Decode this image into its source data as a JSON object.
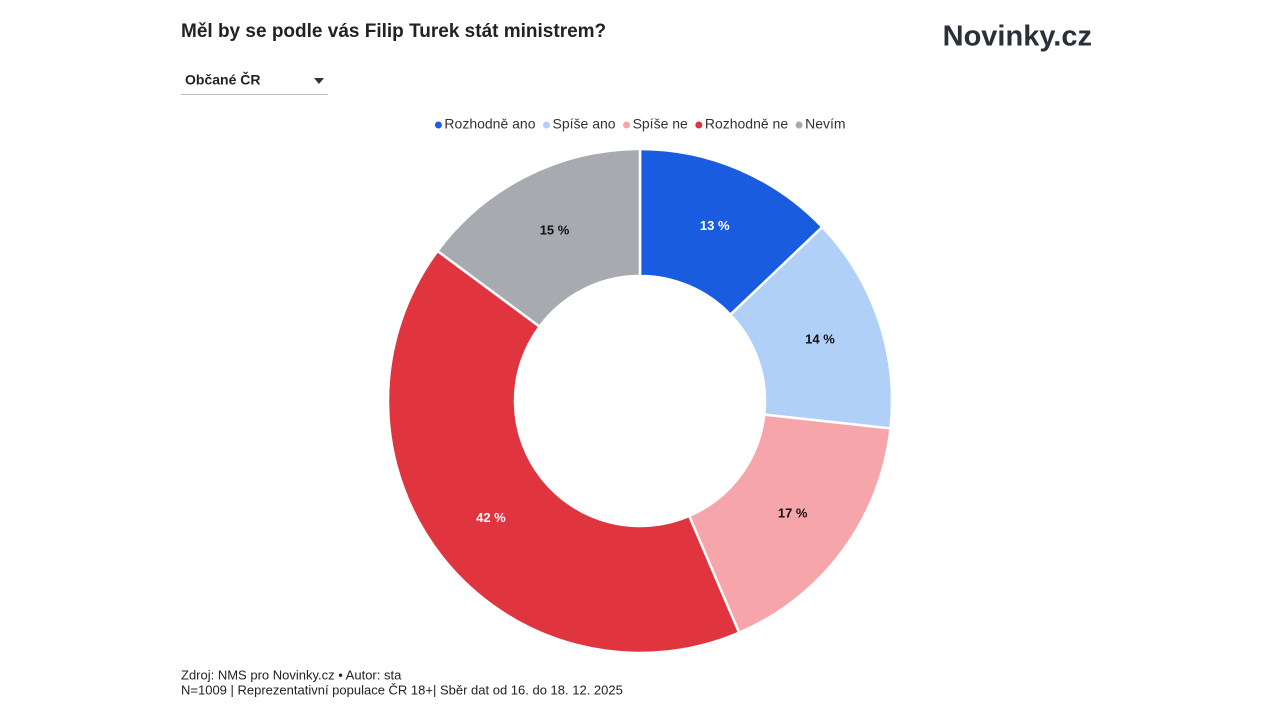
{
  "header": {
    "logo": "Novinky.cz",
    "filter": "Občané ČR"
  },
  "chart_data": {
    "type": "pie",
    "title": "Měl by se podle vás Filip Turek stát ministrem?",
    "categories": [
      "Rozhodně ano",
      "Spíše ano",
      "Spíše ne",
      "Rozhodně ne",
      "Nevím"
    ],
    "values": [
      13,
      14,
      17,
      42,
      15
    ],
    "value_labels": [
      "13 %",
      "14 %",
      "17 %",
      "42 %",
      "15 %"
    ],
    "colors": [
      "#1a5ce0",
      "#b1d0f7",
      "#f6a6aa",
      "#e0353f",
      "#a7aaae"
    ],
    "legend": "top"
  },
  "footer": {
    "source": "Zdroj: NMS pro Novinky.cz • Autor: sta",
    "note": "N=1009 | Reprezentativní populace ČR 18+| Sběr dat od 16. do 18. 12. 2025"
  }
}
